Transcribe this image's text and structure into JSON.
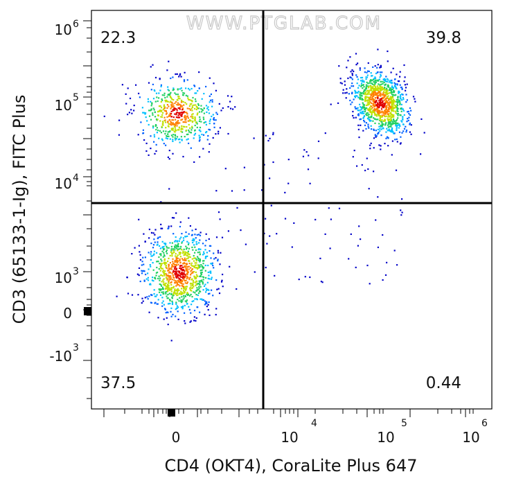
{
  "watermark": "WWW.PTGLAB.COM",
  "chart_data": {
    "type": "scatter",
    "subtype": "flow-cytometry-density-dot-plot",
    "xlabel": "CD4 (OKT4), CoraLite Plus 647",
    "ylabel": "CD3 (65133-1-Ig), FITC Plus",
    "x_scale": "biexponential",
    "y_scale": "biexponential",
    "x_ticks": [
      {
        "base": "0",
        "exp": ""
      },
      {
        "base": "10",
        "exp": "4"
      },
      {
        "base": "10",
        "exp": "5"
      },
      {
        "base": "10",
        "exp": "6"
      }
    ],
    "y_ticks": [
      {
        "base": "10",
        "exp": "6"
      },
      {
        "base": "10",
        "exp": "5"
      },
      {
        "base": "10",
        "exp": "4"
      },
      {
        "base": "10",
        "exp": "3"
      },
      {
        "base": "0",
        "exp": ""
      },
      {
        "base": "-10",
        "exp": "3"
      }
    ],
    "quadrants": [
      {
        "position": "top-left",
        "percent": "22.3"
      },
      {
        "position": "top-right",
        "percent": "39.8"
      },
      {
        "position": "bottom-left",
        "percent": "37.5"
      },
      {
        "position": "bottom-right",
        "percent": "0.44"
      }
    ],
    "gate": {
      "x": 5000,
      "y": 5000
    },
    "populations": [
      {
        "name_visible": false,
        "center_x": 0,
        "center_y": 1000,
        "spread_x": 0.55,
        "spread_y": 0.55,
        "share": 0.375
      },
      {
        "name_visible": false,
        "center_x": 0,
        "center_y": 60000,
        "spread_x": 0.55,
        "spread_y": 0.45,
        "share": 0.223
      },
      {
        "name_visible": false,
        "center_x": 90000,
        "center_y": 95000,
        "spread_x": 0.35,
        "spread_y": 0.4,
        "share": 0.398
      }
    ],
    "density_colors": [
      "#0000c8",
      "#0060ff",
      "#00c0ff",
      "#20d060",
      "#c0e000",
      "#ff8000",
      "#e00000"
    ],
    "grid": false
  }
}
